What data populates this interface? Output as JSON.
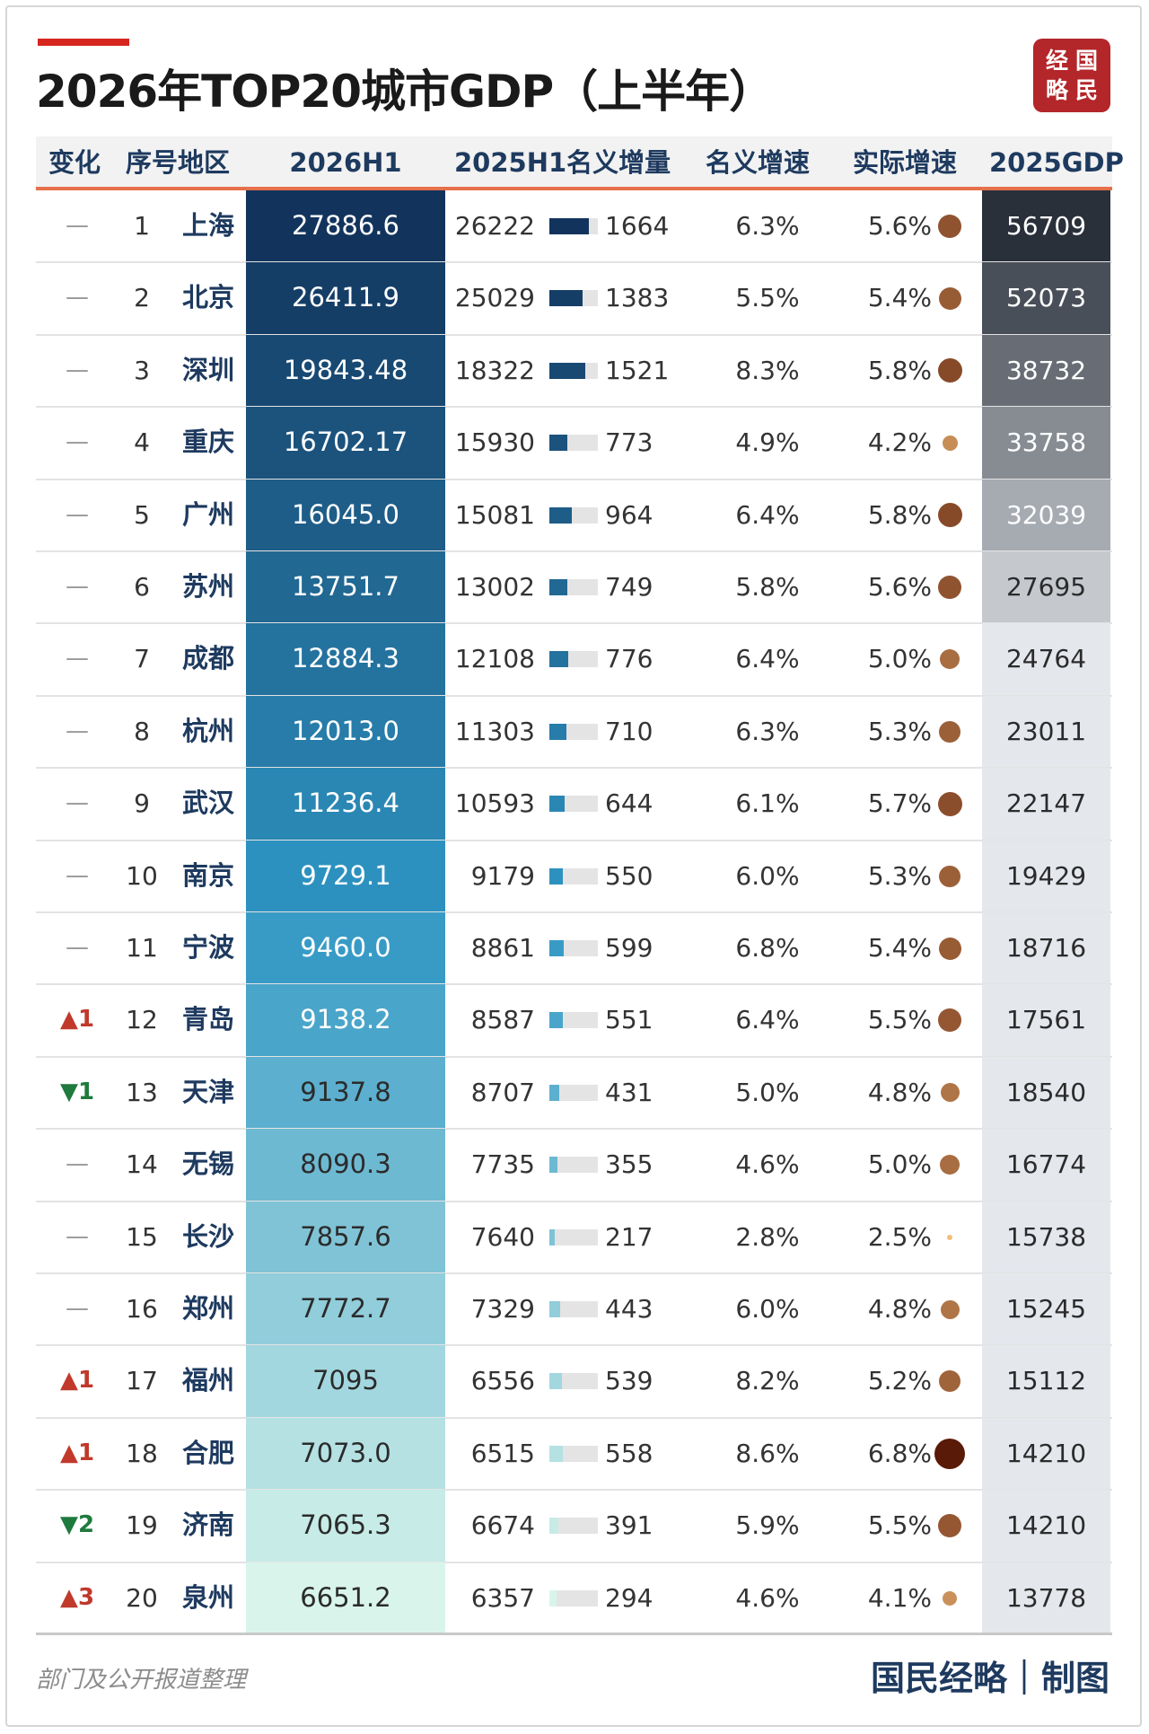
{
  "title": "2026年TOP20城市GDP（上半年）",
  "logo": {
    "chars": [
      "经",
      "国",
      "略",
      "民"
    ],
    "color": "#b3262a"
  },
  "header": {
    "change": "变化",
    "rank_region": "序号地区",
    "h1_2026": "2026H1",
    "h1_2025_increase": "2025H1名义增量",
    "nominal_growth": "名义增速",
    "real_growth": "实际增速",
    "gdp_2025": "2025GDP"
  },
  "footer": {
    "source": "部门及公开报道整理",
    "credit": "国民经略｜制图"
  },
  "colors": {
    "header_text": "#1e3a5f",
    "header_underline": "#e6704a",
    "rank_up": "#c0392b",
    "rank_down": "#1f7a3d"
  },
  "chart_data": {
    "type": "table",
    "columns": [
      "变化",
      "序号",
      "地区",
      "2026H1",
      "2025H1",
      "名义增量",
      "名义增速",
      "实际增速",
      "2025GDP"
    ],
    "rows": [
      {
        "change": "—",
        "dir": "same",
        "rank": "1",
        "city": "上海",
        "h1_2026": "27886.6",
        "h1_2025": "26222",
        "increase": 1664,
        "nominal": "6.3%",
        "real": "5.6%",
        "real_value": 5.6,
        "gdp_2025": "56709"
      },
      {
        "change": "—",
        "dir": "same",
        "rank": "2",
        "city": "北京",
        "h1_2026": "26411.9",
        "h1_2025": "25029",
        "increase": 1383,
        "nominal": "5.5%",
        "real": "5.4%",
        "real_value": 5.4,
        "gdp_2025": "52073"
      },
      {
        "change": "—",
        "dir": "same",
        "rank": "3",
        "city": "深圳",
        "h1_2026": "19843.48",
        "h1_2025": "18322",
        "increase": 1521,
        "nominal": "8.3%",
        "real": "5.8%",
        "real_value": 5.8,
        "gdp_2025": "38732"
      },
      {
        "change": "—",
        "dir": "same",
        "rank": "4",
        "city": "重庆",
        "h1_2026": "16702.17",
        "h1_2025": "15930",
        "increase": 773,
        "nominal": "4.9%",
        "real": "4.2%",
        "real_value": 4.2,
        "gdp_2025": "33758"
      },
      {
        "change": "—",
        "dir": "same",
        "rank": "5",
        "city": "广州",
        "h1_2026": "16045.0",
        "h1_2025": "15081",
        "increase": 964,
        "nominal": "6.4%",
        "real": "5.8%",
        "real_value": 5.8,
        "gdp_2025": "32039"
      },
      {
        "change": "—",
        "dir": "same",
        "rank": "6",
        "city": "苏州",
        "h1_2026": "13751.7",
        "h1_2025": "13002",
        "increase": 749,
        "nominal": "5.8%",
        "real": "5.6%",
        "real_value": 5.6,
        "gdp_2025": "27695"
      },
      {
        "change": "—",
        "dir": "same",
        "rank": "7",
        "city": "成都",
        "h1_2026": "12884.3",
        "h1_2025": "12108",
        "increase": 776,
        "nominal": "6.4%",
        "real": "5.0%",
        "real_value": 5.0,
        "gdp_2025": "24764"
      },
      {
        "change": "—",
        "dir": "same",
        "rank": "8",
        "city": "杭州",
        "h1_2026": "12013.0",
        "h1_2025": "11303",
        "increase": 710,
        "nominal": "6.3%",
        "real": "5.3%",
        "real_value": 5.3,
        "gdp_2025": "23011"
      },
      {
        "change": "—",
        "dir": "same",
        "rank": "9",
        "city": "武汉",
        "h1_2026": "11236.4",
        "h1_2025": "10593",
        "increase": 644,
        "nominal": "6.1%",
        "real": "5.7%",
        "real_value": 5.7,
        "gdp_2025": "22147"
      },
      {
        "change": "—",
        "dir": "same",
        "rank": "10",
        "city": "南京",
        "h1_2026": "9729.1",
        "h1_2025": "9179",
        "increase": 550,
        "nominal": "6.0%",
        "real": "5.3%",
        "real_value": 5.3,
        "gdp_2025": "19429"
      },
      {
        "change": "—",
        "dir": "same",
        "rank": "11",
        "city": "宁波",
        "h1_2026": "9460.0",
        "h1_2025": "8861",
        "increase": 599,
        "nominal": "6.8%",
        "real": "5.4%",
        "real_value": 5.4,
        "gdp_2025": "18716"
      },
      {
        "change": "▲1",
        "dir": "up",
        "rank": "12",
        "city": "青岛",
        "h1_2026": "9138.2",
        "h1_2025": "8587",
        "increase": 551,
        "nominal": "6.4%",
        "real": "5.5%",
        "real_value": 5.5,
        "gdp_2025": "17561"
      },
      {
        "change": "▼1",
        "dir": "down",
        "rank": "13",
        "city": "天津",
        "h1_2026": "9137.8",
        "h1_2025": "8707",
        "increase": 431,
        "nominal": "5.0%",
        "real": "4.8%",
        "real_value": 4.8,
        "gdp_2025": "18540"
      },
      {
        "change": "—",
        "dir": "same",
        "rank": "14",
        "city": "无锡",
        "h1_2026": "8090.3",
        "h1_2025": "7735",
        "increase": 355,
        "nominal": "4.6%",
        "real": "5.0%",
        "real_value": 5.0,
        "gdp_2025": "16774"
      },
      {
        "change": "—",
        "dir": "same",
        "rank": "15",
        "city": "长沙",
        "h1_2026": "7857.6",
        "h1_2025": "7640",
        "increase": 217,
        "nominal": "2.8%",
        "real": "2.5%",
        "real_value": 2.5,
        "gdp_2025": "15738"
      },
      {
        "change": "—",
        "dir": "same",
        "rank": "16",
        "city": "郑州",
        "h1_2026": "7772.7",
        "h1_2025": "7329",
        "increase": 443,
        "nominal": "6.0%",
        "real": "4.8%",
        "real_value": 4.8,
        "gdp_2025": "15245"
      },
      {
        "change": "▲1",
        "dir": "up",
        "rank": "17",
        "city": "福州",
        "h1_2026": "7095",
        "h1_2025": "6556",
        "increase": 539,
        "nominal": "8.2%",
        "real": "5.2%",
        "real_value": 5.2,
        "gdp_2025": "15112"
      },
      {
        "change": "▲1",
        "dir": "up",
        "rank": "18",
        "city": "合肥",
        "h1_2026": "7073.0",
        "h1_2025": "6515",
        "increase": 558,
        "nominal": "8.6%",
        "real": "6.8%",
        "real_value": 6.8,
        "gdp_2025": "14210"
      },
      {
        "change": "▼2",
        "dir": "down",
        "rank": "19",
        "city": "济南",
        "h1_2026": "7065.3",
        "h1_2025": "6674",
        "increase": 391,
        "nominal": "5.9%",
        "real": "5.5%",
        "real_value": 5.5,
        "gdp_2025": "14210"
      },
      {
        "change": "▲3",
        "dir": "up",
        "rank": "20",
        "city": "泉州",
        "h1_2026": "6651.2",
        "h1_2025": "6357",
        "increase": 294,
        "nominal": "4.6%",
        "real": "4.1%",
        "real_value": 4.1,
        "gdp_2025": "13778"
      }
    ]
  }
}
